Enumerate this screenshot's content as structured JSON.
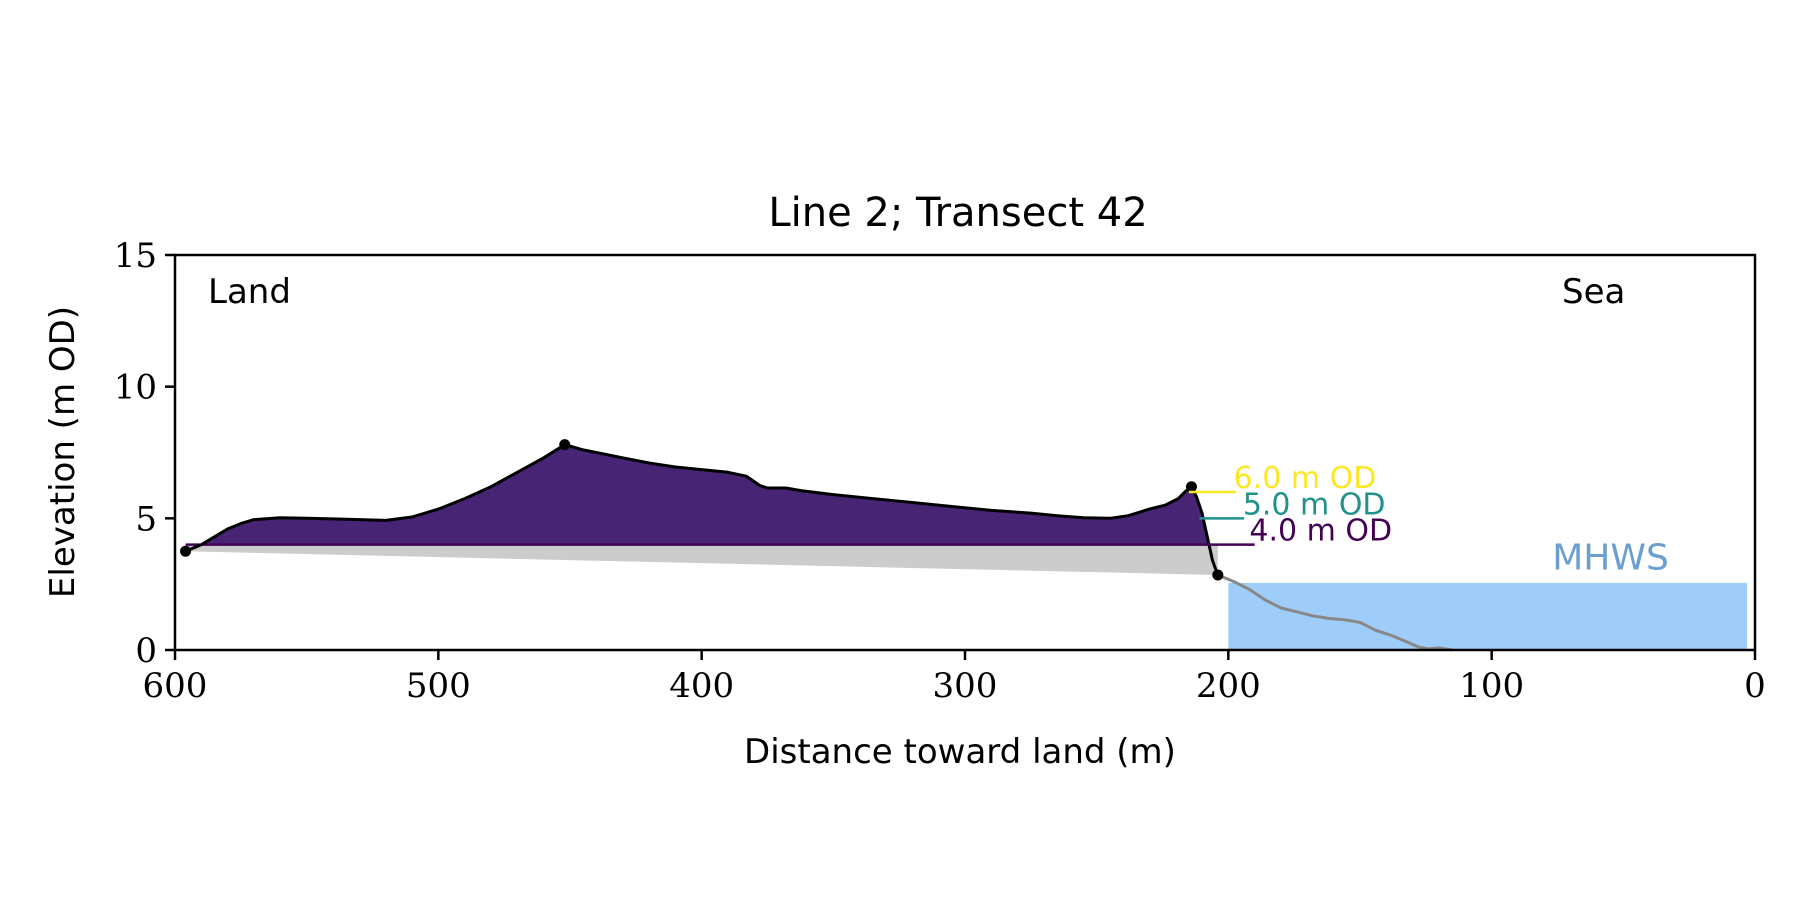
{
  "chart_data": {
    "type": "area",
    "title": "Line 2; Transect 42",
    "xlabel": "Distance toward land (m)",
    "ylabel": "Elevation (m OD)",
    "xlim": [
      600,
      0
    ],
    "ylim": [
      0,
      15
    ],
    "x_ticks": [
      600,
      500,
      400,
      300,
      200,
      100,
      0
    ],
    "y_ticks": [
      0,
      5,
      10,
      15
    ],
    "grid": false,
    "annotations": {
      "land": "Land",
      "sea": "Sea",
      "mhws": "MHWS"
    },
    "mhws_level": 2.55,
    "mhws_x_range": [
      200,
      3
    ],
    "colors": {
      "dune": "#482474",
      "band_5m": "#26a784",
      "base": "#cccccc",
      "sea": "#9ecdfa",
      "mhws_text": "#6a9fd0",
      "level_6": "#fde725",
      "level_5": "#21918c",
      "level_4": "#440154",
      "profile": "#000000",
      "beach": "#888888"
    },
    "levels": [
      {
        "label": "6.0 m OD",
        "value": 6.0,
        "color": "#fde725"
      },
      {
        "label": "5.0 m OD",
        "value": 5.0,
        "color": "#21918c"
      },
      {
        "label": "4.0 m OD",
        "value": 4.0,
        "color": "#440154"
      }
    ],
    "dune_profile": [
      [
        596,
        3.75
      ],
      [
        590,
        4.0
      ],
      [
        585,
        4.3
      ],
      [
        580,
        4.6
      ],
      [
        575,
        4.8
      ],
      [
        570,
        4.95
      ],
      [
        560,
        5.02
      ],
      [
        550,
        5.0
      ],
      [
        540,
        4.98
      ],
      [
        530,
        4.95
      ],
      [
        520,
        4.92
      ],
      [
        510,
        5.05
      ],
      [
        500,
        5.35
      ],
      [
        490,
        5.75
      ],
      [
        480,
        6.2
      ],
      [
        470,
        6.75
      ],
      [
        460,
        7.3
      ],
      [
        452,
        7.8
      ],
      [
        445,
        7.6
      ],
      [
        430,
        7.3
      ],
      [
        420,
        7.1
      ],
      [
        410,
        6.95
      ],
      [
        400,
        6.85
      ],
      [
        390,
        6.75
      ],
      [
        383,
        6.6
      ],
      [
        378,
        6.25
      ],
      [
        375,
        6.15
      ],
      [
        368,
        6.15
      ],
      [
        362,
        6.05
      ],
      [
        350,
        5.9
      ],
      [
        335,
        5.75
      ],
      [
        320,
        5.6
      ],
      [
        305,
        5.45
      ],
      [
        290,
        5.3
      ],
      [
        275,
        5.2
      ],
      [
        265,
        5.1
      ],
      [
        255,
        5.02
      ],
      [
        245,
        5.0
      ],
      [
        238,
        5.1
      ],
      [
        230,
        5.35
      ],
      [
        224,
        5.5
      ],
      [
        219,
        5.75
      ],
      [
        216,
        6.05
      ],
      [
        214,
        6.2
      ],
      [
        212,
        5.8
      ],
      [
        210,
        5.2
      ],
      [
        208,
        4.3
      ],
      [
        206,
        3.4
      ],
      [
        204,
        2.85
      ]
    ],
    "beach_profile": [
      [
        204,
        2.85
      ],
      [
        198,
        2.6
      ],
      [
        192,
        2.3
      ],
      [
        186,
        1.9
      ],
      [
        180,
        1.6
      ],
      [
        174,
        1.45
      ],
      [
        168,
        1.3
      ],
      [
        162,
        1.2
      ],
      [
        156,
        1.15
      ],
      [
        150,
        1.05
      ],
      [
        144,
        0.75
      ],
      [
        138,
        0.55
      ],
      [
        132,
        0.3
      ],
      [
        128,
        0.12
      ],
      [
        124,
        0.04
      ],
      [
        120,
        0.08
      ],
      [
        115,
        0.0
      ]
    ],
    "base_line": [
      [
        596,
        3.75
      ],
      [
        204,
        2.85
      ]
    ],
    "markers": [
      [
        596,
        3.75
      ],
      [
        452,
        7.8
      ],
      [
        214,
        6.2
      ],
      [
        204,
        2.85
      ]
    ]
  }
}
